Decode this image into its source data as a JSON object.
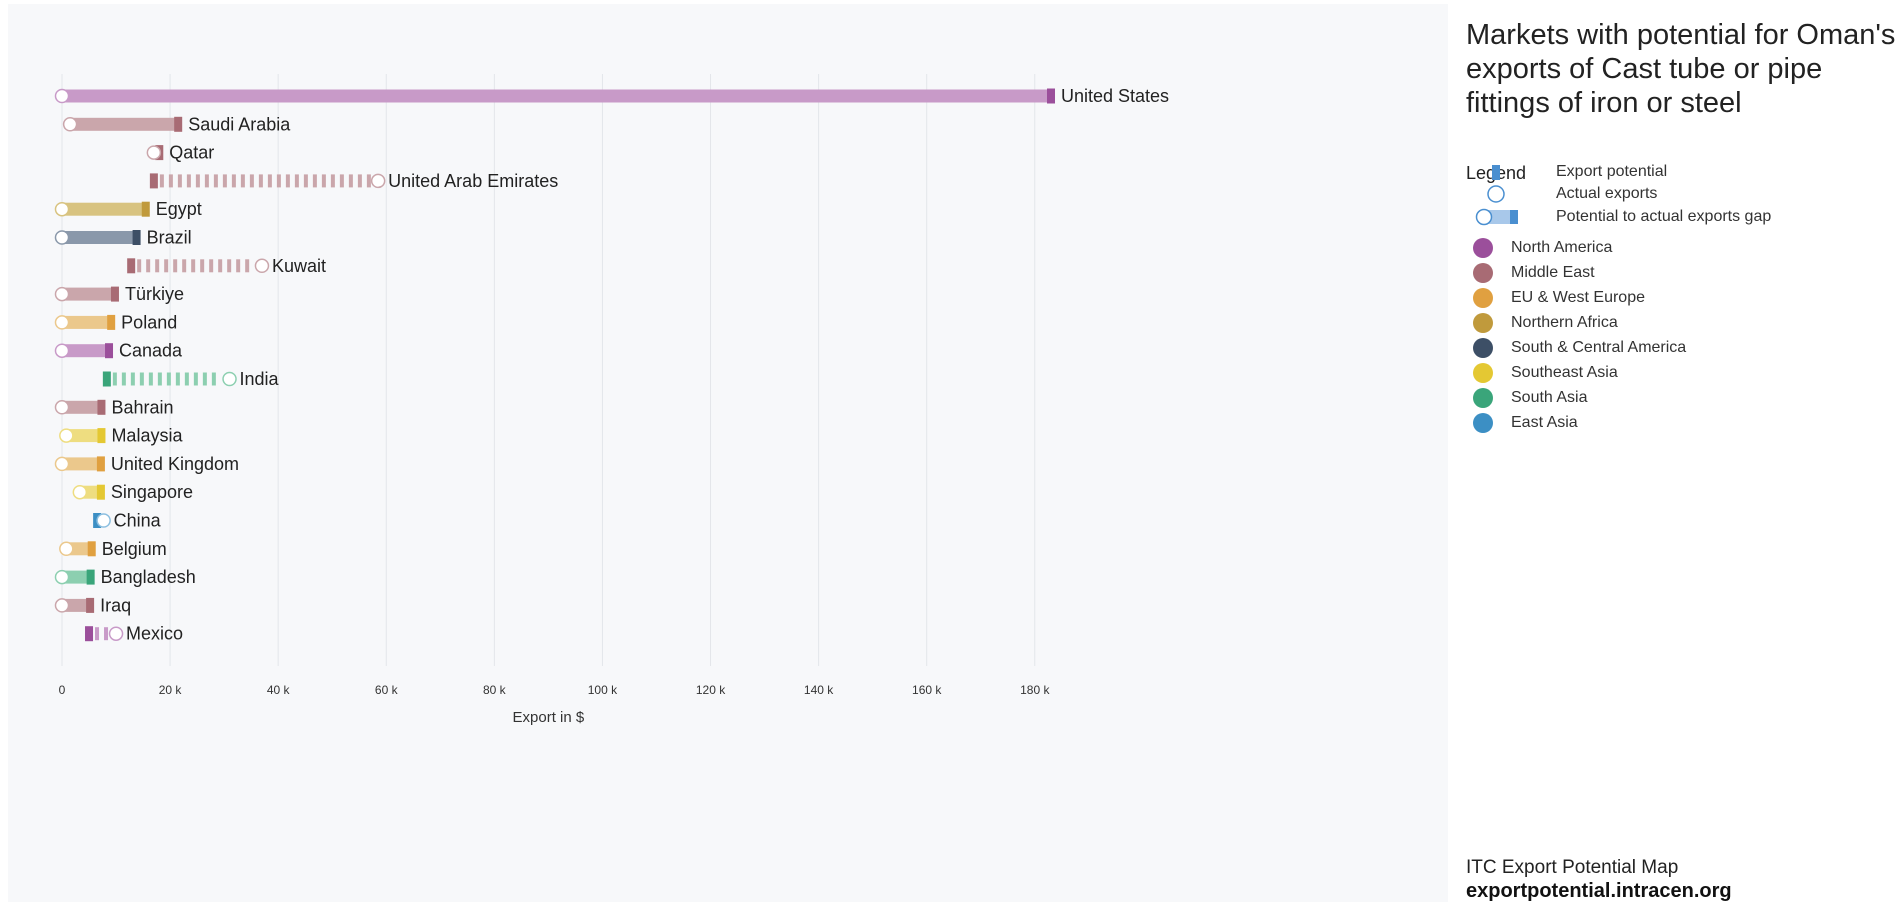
{
  "chart_data": {
    "type": "dumbbell-bar",
    "title": "Markets with potential for Oman's exports of Cast tube or pipe fittings of iron or steel",
    "xlabel": "Export in $",
    "x_ticks": [
      {
        "value": 0,
        "label": "0"
      },
      {
        "value": 20000,
        "label": "20 k"
      },
      {
        "value": 40000,
        "label": "40 k"
      },
      {
        "value": 60000,
        "label": "60 k"
      },
      {
        "value": 80000,
        "label": "80 k"
      },
      {
        "value": 100000,
        "label": "100 k"
      },
      {
        "value": 120000,
        "label": "120 k"
      },
      {
        "value": 140000,
        "label": "140 k"
      },
      {
        "value": 160000,
        "label": "160 k"
      },
      {
        "value": 180000,
        "label": "180 k"
      }
    ],
    "xlim": [
      0,
      200000
    ],
    "grid": true,
    "markets": [
      {
        "country": "United States",
        "region": "North America",
        "actual": 0,
        "potential": 183000
      },
      {
        "country": "Saudi Arabia",
        "region": "Middle East",
        "actual": 1500,
        "potential": 21500
      },
      {
        "country": "Qatar",
        "region": "Middle East",
        "actual": 17000,
        "potential": 18000
      },
      {
        "country": "United Arab Emirates",
        "region": "Middle East",
        "actual": 58500,
        "potential": 17000
      },
      {
        "country": "Egypt",
        "region": "Northern Africa",
        "actual": 0,
        "potential": 15500
      },
      {
        "country": "Brazil",
        "region": "South & Central America",
        "actual": 0,
        "potential": 13800
      },
      {
        "country": "Kuwait",
        "region": "Middle East",
        "actual": 37000,
        "potential": 12800
      },
      {
        "country": "Türkiye",
        "region": "Middle East",
        "actual": 0,
        "potential": 9800
      },
      {
        "country": "Poland",
        "region": "EU & West Europe",
        "actual": 0,
        "potential": 9100
      },
      {
        "country": "Canada",
        "region": "North America",
        "actual": 0,
        "potential": 8700
      },
      {
        "country": "India",
        "region": "South Asia",
        "actual": 31000,
        "potential": 8300
      },
      {
        "country": "Bahrain",
        "region": "Middle East",
        "actual": 0,
        "potential": 7300
      },
      {
        "country": "Malaysia",
        "region": "Southeast Asia",
        "actual": 800,
        "potential": 7300
      },
      {
        "country": "United Kingdom",
        "region": "EU & West Europe",
        "actual": 0,
        "potential": 7200
      },
      {
        "country": "Singapore",
        "region": "Southeast Asia",
        "actual": 3300,
        "potential": 7200
      },
      {
        "country": "China",
        "region": "East Asia",
        "actual": 7700,
        "potential": 6500
      },
      {
        "country": "Belgium",
        "region": "EU & West Europe",
        "actual": 800,
        "potential": 5500
      },
      {
        "country": "Bangladesh",
        "region": "South Asia",
        "actual": 0,
        "potential": 5300
      },
      {
        "country": "Iraq",
        "region": "Middle East",
        "actual": 0,
        "potential": 5200
      },
      {
        "country": "Mexico",
        "region": "North America",
        "actual": 10000,
        "potential": 5000
      }
    ]
  },
  "legend": {
    "heading": "Legend",
    "symbols": [
      {
        "key": "export-potential",
        "label": "Export potential"
      },
      {
        "key": "actual-exports",
        "label": "Actual exports"
      },
      {
        "key": "gap",
        "label": "Potential to actual exports gap"
      }
    ],
    "regions": [
      {
        "name": "North America",
        "color": "#9b4f9b",
        "light": "#c89ac8"
      },
      {
        "name": "Middle East",
        "color": "#a86b74",
        "light": "#caa6ab"
      },
      {
        "name": "EU & West Europe",
        "color": "#e0a040",
        "light": "#ebc88c"
      },
      {
        "name": "Northern Africa",
        "color": "#c09a3c",
        "light": "#d8c380"
      },
      {
        "name": "South & Central America",
        "color": "#3d4f66",
        "light": "#8a98aa"
      },
      {
        "name": "Southeast Asia",
        "color": "#e4c833",
        "light": "#eedd80"
      },
      {
        "name": "South Asia",
        "color": "#3aa57a",
        "light": "#8ccfb0"
      },
      {
        "name": "East Asia",
        "color": "#3c8fc4",
        "light": "#8cbfe0"
      }
    ]
  },
  "source": {
    "line1": "ITC Export Potential Map",
    "line2": "exportpotential.intracen.org"
  },
  "legend_colors": {
    "symbol_dark": "#4a8fd0",
    "symbol_light": "#a8c8ea"
  }
}
